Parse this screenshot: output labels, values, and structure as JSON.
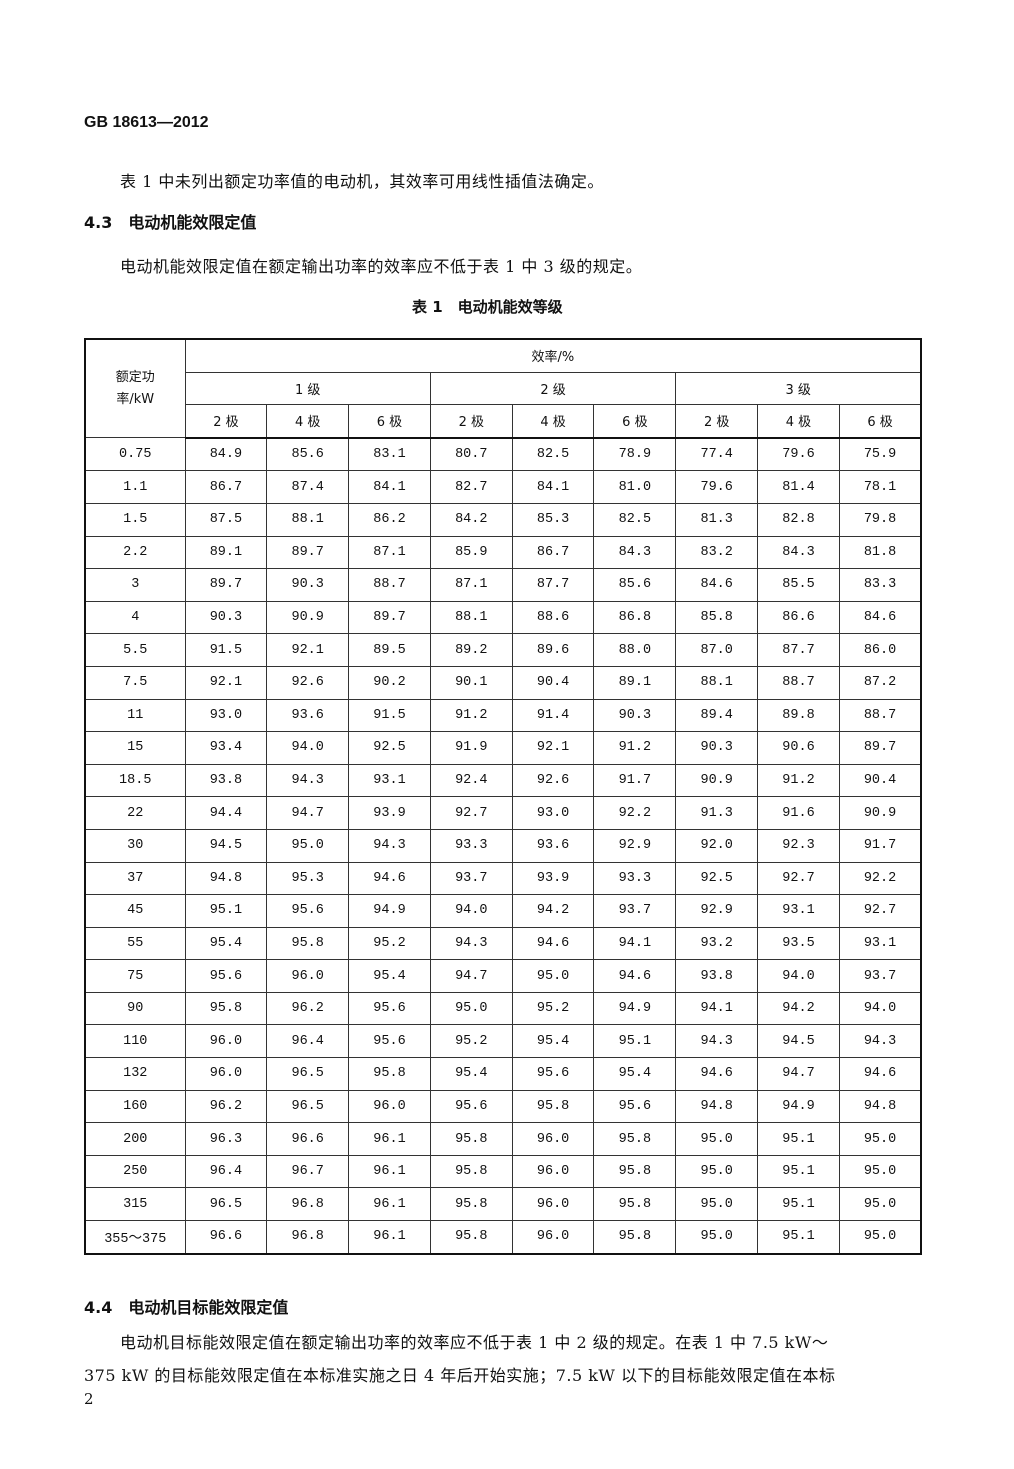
{
  "header": {
    "standard_id": "GB 18613—2012"
  },
  "intro_paragraph": "表 1 中未列出额定功率值的电动机，其效率可用线性插值法确定。",
  "section_4_3": {
    "heading": "4.3　电动机能效限定值",
    "text": "电动机能效限定值在额定输出功率的效率应不低于表 1 中 3 级的规定。"
  },
  "table": {
    "caption": "表 1　电动机能效等级",
    "power_header": "额定功率/kW",
    "efficiency_header": "效率/%",
    "grades": [
      "1 级",
      "2 级",
      "3 级"
    ],
    "poles": [
      "2 极",
      "4 极",
      "6 极",
      "2 极",
      "4 极",
      "6 极",
      "2 极",
      "4 极",
      "6 极"
    ],
    "rows": [
      [
        "0.75",
        "84.9",
        "85.6",
        "83.1",
        "80.7",
        "82.5",
        "78.9",
        "77.4",
        "79.6",
        "75.9"
      ],
      [
        "1.1",
        "86.7",
        "87.4",
        "84.1",
        "82.7",
        "84.1",
        "81.0",
        "79.6",
        "81.4",
        "78.1"
      ],
      [
        "1.5",
        "87.5",
        "88.1",
        "86.2",
        "84.2",
        "85.3",
        "82.5",
        "81.3",
        "82.8",
        "79.8"
      ],
      [
        "2.2",
        "89.1",
        "89.7",
        "87.1",
        "85.9",
        "86.7",
        "84.3",
        "83.2",
        "84.3",
        "81.8"
      ],
      [
        "3",
        "89.7",
        "90.3",
        "88.7",
        "87.1",
        "87.7",
        "85.6",
        "84.6",
        "85.5",
        "83.3"
      ],
      [
        "4",
        "90.3",
        "90.9",
        "89.7",
        "88.1",
        "88.6",
        "86.8",
        "85.8",
        "86.6",
        "84.6"
      ],
      [
        "5.5",
        "91.5",
        "92.1",
        "89.5",
        "89.2",
        "89.6",
        "88.0",
        "87.0",
        "87.7",
        "86.0"
      ],
      [
        "7.5",
        "92.1",
        "92.6",
        "90.2",
        "90.1",
        "90.4",
        "89.1",
        "88.1",
        "88.7",
        "87.2"
      ],
      [
        "11",
        "93.0",
        "93.6",
        "91.5",
        "91.2",
        "91.4",
        "90.3",
        "89.4",
        "89.8",
        "88.7"
      ],
      [
        "15",
        "93.4",
        "94.0",
        "92.5",
        "91.9",
        "92.1",
        "91.2",
        "90.3",
        "90.6",
        "89.7"
      ],
      [
        "18.5",
        "93.8",
        "94.3",
        "93.1",
        "92.4",
        "92.6",
        "91.7",
        "90.9",
        "91.2",
        "90.4"
      ],
      [
        "22",
        "94.4",
        "94.7",
        "93.9",
        "92.7",
        "93.0",
        "92.2",
        "91.3",
        "91.6",
        "90.9"
      ],
      [
        "30",
        "94.5",
        "95.0",
        "94.3",
        "93.3",
        "93.6",
        "92.9",
        "92.0",
        "92.3",
        "91.7"
      ],
      [
        "37",
        "94.8",
        "95.3",
        "94.6",
        "93.7",
        "93.9",
        "93.3",
        "92.5",
        "92.7",
        "92.2"
      ],
      [
        "45",
        "95.1",
        "95.6",
        "94.9",
        "94.0",
        "94.2",
        "93.7",
        "92.9",
        "93.1",
        "92.7"
      ],
      [
        "55",
        "95.4",
        "95.8",
        "95.2",
        "94.3",
        "94.6",
        "94.1",
        "93.2",
        "93.5",
        "93.1"
      ],
      [
        "75",
        "95.6",
        "96.0",
        "95.4",
        "94.7",
        "95.0",
        "94.6",
        "93.8",
        "94.0",
        "93.7"
      ],
      [
        "90",
        "95.8",
        "96.2",
        "95.6",
        "95.0",
        "95.2",
        "94.9",
        "94.1",
        "94.2",
        "94.0"
      ],
      [
        "110",
        "96.0",
        "96.4",
        "95.6",
        "95.2",
        "95.4",
        "95.1",
        "94.3",
        "94.5",
        "94.3"
      ],
      [
        "132",
        "96.0",
        "96.5",
        "95.8",
        "95.4",
        "95.6",
        "95.4",
        "94.6",
        "94.7",
        "94.6"
      ],
      [
        "160",
        "96.2",
        "96.5",
        "96.0",
        "95.6",
        "95.8",
        "95.6",
        "94.8",
        "94.9",
        "94.8"
      ],
      [
        "200",
        "96.3",
        "96.6",
        "96.1",
        "95.8",
        "96.0",
        "95.8",
        "95.0",
        "95.1",
        "95.0"
      ],
      [
        "250",
        "96.4",
        "96.7",
        "96.1",
        "95.8",
        "96.0",
        "95.8",
        "95.0",
        "95.1",
        "95.0"
      ],
      [
        "315",
        "96.5",
        "96.8",
        "96.1",
        "95.8",
        "96.0",
        "95.8",
        "95.0",
        "95.1",
        "95.0"
      ],
      [
        "355～375",
        "96.6",
        "96.8",
        "96.1",
        "95.8",
        "96.0",
        "95.8",
        "95.0",
        "95.1",
        "95.0"
      ]
    ]
  },
  "section_4_4": {
    "heading": "4.4　电动机目标能效限定值",
    "line1": "电动机目标能效限定值在额定输出功率的效率应不低于表 1 中 2 级的规定。在表 1 中 7.5 kW～",
    "line2": "375 kW 的目标能效限定值在本标准实施之日 4 年后开始实施；7.5 kW 以下的目标能效限定值在本标"
  },
  "footer": {
    "page_number": "2"
  }
}
